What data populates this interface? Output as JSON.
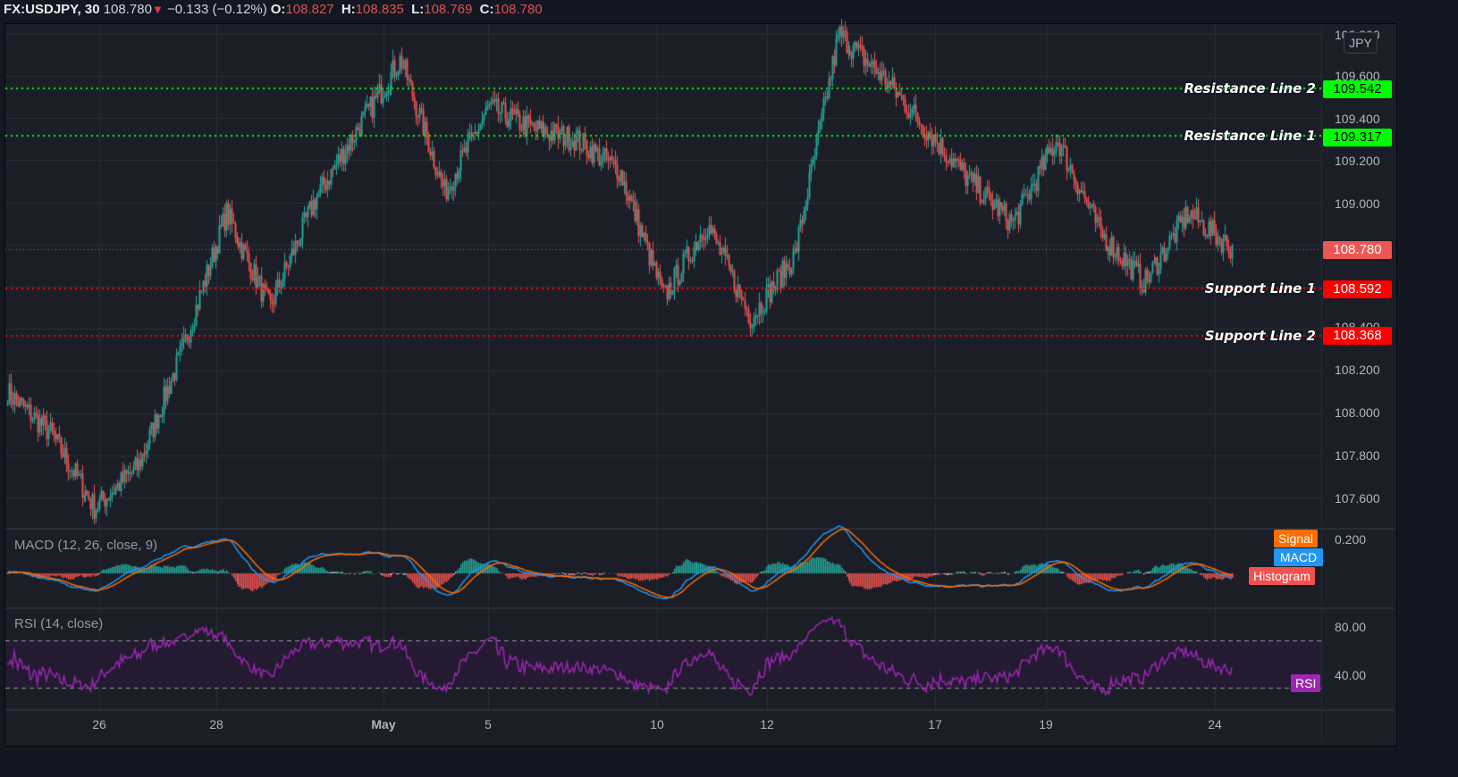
{
  "header": {
    "symbol": "FX:USDJPY, 30",
    "last": "108.780",
    "change_icon": "down-triangle-icon",
    "change": "−0.133 (−0.12%)",
    "open_label": "O:",
    "open": "108.827",
    "high_label": "H:",
    "high": "108.835",
    "low_label": "L:",
    "low": "108.769",
    "close_label": "C:",
    "close": "108.780"
  },
  "price_axis": {
    "currency_badge": "JPY",
    "ticks": [
      "109.800",
      "109.600",
      "109.400",
      "109.200",
      "109.000",
      "108.800",
      "108.600",
      "108.400",
      "108.200",
      "108.000",
      "107.800",
      "107.600"
    ],
    "current_price": "108.780"
  },
  "lines": [
    {
      "label": "Resistance Line 2",
      "value": "109.542",
      "color": "#00ff00"
    },
    {
      "label": "Resistance Line 1",
      "value": "109.317",
      "color": "#00ff00"
    },
    {
      "label": "Support Line 1",
      "value": "108.592",
      "color": "#ff0000"
    },
    {
      "label": "Support Line 2",
      "value": "108.368",
      "color": "#ff0000"
    }
  ],
  "macd": {
    "title": "MACD (12, 26, close, 9)",
    "axis_tick": "0.200",
    "legend": [
      {
        "label": "Signal",
        "color": "#ff6d00"
      },
      {
        "label": "MACD",
        "color": "#2196f3"
      },
      {
        "label": "Histogram",
        "color": "#ef5350"
      }
    ]
  },
  "rsi": {
    "title": "RSI (14, close)",
    "axis_ticks": [
      "80.00",
      "40.00"
    ],
    "legend": {
      "label": "RSI",
      "color": "#9c27b0"
    }
  },
  "time_axis": {
    "labels": [
      "26",
      "28",
      "May",
      "5",
      "10",
      "12",
      "17",
      "19",
      "24"
    ]
  },
  "colors": {
    "up": "#26a69a",
    "down": "#ef5350",
    "background": "#1b1e27",
    "grid": "#2a2e39",
    "macd": "#2196f3",
    "signal": "#ff6d00",
    "rsi": "#9c27b0"
  },
  "chart_data": {
    "type": "candlestick",
    "title": "FX:USDJPY, 30",
    "xlabel": "",
    "ylabel": "JPY",
    "x_ticks": [
      "26",
      "28",
      "May",
      "5",
      "10",
      "12",
      "17",
      "19",
      "24"
    ],
    "ylim": [
      107.5,
      109.82
    ],
    "approx_close_path": [
      {
        "x": "Apr 24",
        "y": 108.1
      },
      {
        "x": "Apr 25",
        "y": 107.9
      },
      {
        "x": "Apr 25 late",
        "y": 107.55
      },
      {
        "x": "Apr 26",
        "y": 107.75
      },
      {
        "x": "Apr 27",
        "y": 108.3
      },
      {
        "x": "Apr 28",
        "y": 108.95
      },
      {
        "x": "Apr 29",
        "y": 108.5
      },
      {
        "x": "Apr 30",
        "y": 109.0
      },
      {
        "x": "May 1",
        "y": 109.35
      },
      {
        "x": "May 2",
        "y": 109.68
      },
      {
        "x": "May 3",
        "y": 109.05
      },
      {
        "x": "May 4",
        "y": 109.45
      },
      {
        "x": "May 6",
        "y": 109.35
      },
      {
        "x": "May 7",
        "y": 109.3
      },
      {
        "x": "May 8",
        "y": 109.15
      },
      {
        "x": "May 10",
        "y": 108.55
      },
      {
        "x": "May 11",
        "y": 108.9
      },
      {
        "x": "May 11 late",
        "y": 108.45
      },
      {
        "x": "May 12",
        "y": 108.75
      },
      {
        "x": "May 13",
        "y": 109.8
      },
      {
        "x": "May 14",
        "y": 109.6
      },
      {
        "x": "May 17",
        "y": 109.35
      },
      {
        "x": "May 18",
        "y": 109.1
      },
      {
        "x": "May 19",
        "y": 108.9
      },
      {
        "x": "May 20",
        "y": 109.3
      },
      {
        "x": "May 21",
        "y": 108.85
      },
      {
        "x": "May 23",
        "y": 108.62
      },
      {
        "x": "May 24",
        "y": 108.95
      },
      {
        "x": "May 24 last",
        "y": 108.78
      }
    ],
    "horizontal_lines": [
      {
        "name": "Resistance Line 2",
        "y": 109.542
      },
      {
        "name": "Resistance Line 1",
        "y": 109.317
      },
      {
        "name": "Support Line 1",
        "y": 108.592
      },
      {
        "name": "Support Line 2",
        "y": 108.368
      }
    ],
    "last_price": 108.78,
    "ohlc": {
      "open": 108.827,
      "high": 108.835,
      "low": 108.769,
      "close": 108.78
    },
    "change": -0.133,
    "change_pct": -0.12,
    "indicators": [
      {
        "name": "MACD (12, 26, close, 9)",
        "series": [
          "MACD",
          "Signal",
          "Histogram"
        ],
        "ytick": 0.2
      },
      {
        "name": "RSI (14, close)",
        "bands": [
          70,
          30
        ],
        "yticks": [
          80,
          40
        ]
      }
    ]
  }
}
